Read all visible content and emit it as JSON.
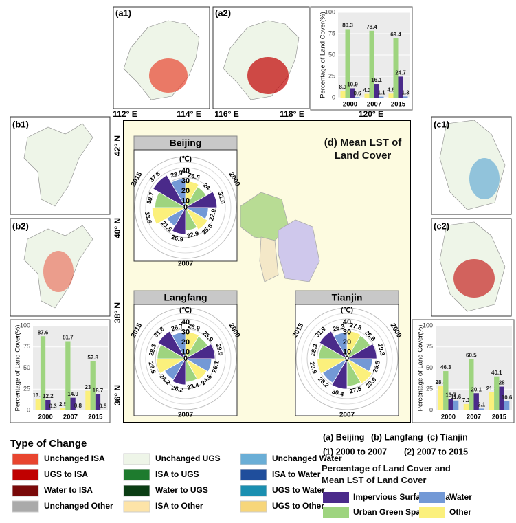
{
  "chart_data": [
    {
      "type": "bar",
      "categories": [
        "2000",
        "2007",
        "2015"
      ],
      "ylabel": "Percentage of Land Cover(%)",
      "ylim": [
        0,
        100
      ],
      "yticks": [
        0,
        25,
        50,
        75,
        100
      ],
      "series": [
        {
          "color": "#fbf07c",
          "values": [
            8.1,
            4.3,
            4.6
          ]
        },
        {
          "color": "#9ed47f",
          "values": [
            80.3,
            78.4,
            69.4
          ]
        },
        {
          "color": "#4a2a8a",
          "values": [
            10.9,
            16.1,
            24.7
          ]
        },
        {
          "color": "#7399d6",
          "values": [
            0.6,
            1.1,
            1.3
          ]
        }
      ]
    },
    {
      "type": "bar",
      "categories": [
        "2000",
        "2007",
        "2015"
      ],
      "ylabel": "Percentage of Land Cover(%)",
      "ylim": [
        0,
        100
      ],
      "yticks": [
        0,
        25,
        50,
        75,
        100
      ],
      "series": [
        {
          "color": "#fbf07c",
          "values": [
            13.3,
            2.5,
            23
          ]
        },
        {
          "color": "#9ed47f",
          "values": [
            87.6,
            81.7,
            57.8
          ]
        },
        {
          "color": "#4a2a8a",
          "values": [
            12.2,
            14.9,
            18.7
          ]
        },
        {
          "color": "#7399d6",
          "values": [
            0.3,
            0.8,
            0.5
          ]
        }
      ]
    },
    {
      "type": "bar",
      "categories": [
        "2000",
        "2007",
        "2015"
      ],
      "ylabel": "Percentage of Land Cover(%)",
      "ylim": [
        0,
        100
      ],
      "yticks": [
        0,
        25,
        50,
        75,
        100
      ],
      "series": [
        {
          "color": "#fbf07c",
          "values": [
            28.4,
            7.3,
            21.3
          ]
        },
        {
          "color": "#9ed47f",
          "values": [
            46.3,
            60.5,
            40.1
          ]
        },
        {
          "color": "#4a2a8a",
          "values": [
            13.7,
            20.1,
            28
          ]
        },
        {
          "color": "#7399d6",
          "values": [
            11.6,
            2.1,
            10.6
          ]
        }
      ]
    },
    {
      "type": "rose",
      "title": "Beijing",
      "unit": "(℃)",
      "categories": [
        "2000",
        "2007",
        "2015"
      ],
      "ylim": [
        0,
        40
      ],
      "yticks": [
        0,
        10,
        20,
        30,
        40
      ],
      "series": [
        {
          "color": "#fbf07c",
          "values": [
            26.5,
            25.6,
            33.6
          ]
        },
        {
          "color": "#9ed47f",
          "values": [
            24,
            22.9,
            30.7
          ]
        },
        {
          "color": "#4a2a8a",
          "values": [
            31.6,
            26.9,
            37.6
          ]
        },
        {
          "color": "#7399d6",
          "values": [
            22.9,
            21.5,
            28.9
          ]
        }
      ]
    },
    {
      "type": "rose",
      "title": "Langfang",
      "unit": "(℃)",
      "categories": [
        "2000",
        "2007",
        "2015"
      ],
      "ylim": [
        0,
        40
      ],
      "yticks": [
        0,
        10,
        20,
        30,
        40
      ],
      "series": [
        {
          "color": "#fbf07c",
          "values": [
            26.9,
            24.6,
            29.5
          ]
        },
        {
          "color": "#9ed47f",
          "values": [
            25.9,
            23.4,
            28.3
          ]
        },
        {
          "color": "#4a2a8a",
          "values": [
            29.6,
            26.2,
            31.8
          ]
        },
        {
          "color": "#7399d6",
          "values": [
            26.1,
            24.2,
            26.7
          ]
        }
      ]
    },
    {
      "type": "rose",
      "title": "Tianjin",
      "unit": "(℃)",
      "categories": [
        "2000",
        "2007",
        "2015"
      ],
      "ylim": [
        0,
        40
      ],
      "yticks": [
        0,
        10,
        20,
        30,
        40
      ],
      "series": [
        {
          "color": "#fbf07c",
          "values": [
            27.8,
            28.9,
            29.9
          ]
        },
        {
          "color": "#9ed47f",
          "values": [
            26.8,
            27.5,
            28.3
          ]
        },
        {
          "color": "#4a2a8a",
          "values": [
            29.8,
            30.4,
            31.9
          ]
        },
        {
          "color": "#7399d6",
          "values": [
            25.5,
            28.2,
            26.3
          ]
        }
      ]
    }
  ],
  "maps": {
    "panels": [
      "(a1)",
      "(a2)",
      "(b1)",
      "(b2)",
      "(c1)",
      "(c2)"
    ],
    "lon_labels": [
      "112° E",
      "114° E",
      "116° E",
      "118° E",
      "120° E"
    ],
    "lat_labels": [
      "42° N",
      "40° N",
      "38° N",
      "36° N"
    ],
    "title": "(d) Mean LST of Land Cover"
  },
  "change_legend": {
    "title": "Type of Change",
    "items": [
      {
        "name": "Unchanged ISA",
        "color": "#e8452f"
      },
      {
        "name": "UGS to ISA",
        "color": "#c00000"
      },
      {
        "name": "Water to ISA",
        "color": "#7a0a0a"
      },
      {
        "name": "Unchanged Other",
        "color": "#aaaaaa"
      },
      {
        "name": "Unchanged UGS",
        "color": "#eef5e8"
      },
      {
        "name": "ISA to UGS",
        "color": "#1e7b2e"
      },
      {
        "name": "Water to UGS",
        "color": "#0b3d14"
      },
      {
        "name": "ISA to Other",
        "color": "#fde4a8"
      },
      {
        "name": "Unchanged Water",
        "color": "#6aaed6"
      },
      {
        "name": "ISA to Water",
        "color": "#1f4e9c"
      },
      {
        "name": "UGS to Water",
        "color": "#1b8fb0"
      },
      {
        "name": "UGS to Other",
        "color": "#f7d67a"
      }
    ]
  },
  "key": {
    "regions": [
      "(a) Beijing",
      "(b) Langfang",
      "(c) Tianjin"
    ],
    "periods": [
      "(1) 2000 to 2007",
      "(2) 2007 to 2015"
    ]
  },
  "land_cover_legend": {
    "title": "Percentage of Land Cover and Mean LST of Land Cover",
    "items": [
      {
        "name": "Impervious Surface Area",
        "color": "#4a2a8a"
      },
      {
        "name": "Water",
        "color": "#7399d6"
      },
      {
        "name": "Urban Green Space",
        "color": "#9ed47f"
      },
      {
        "name": "Other",
        "color": "#fbf07c"
      }
    ]
  }
}
